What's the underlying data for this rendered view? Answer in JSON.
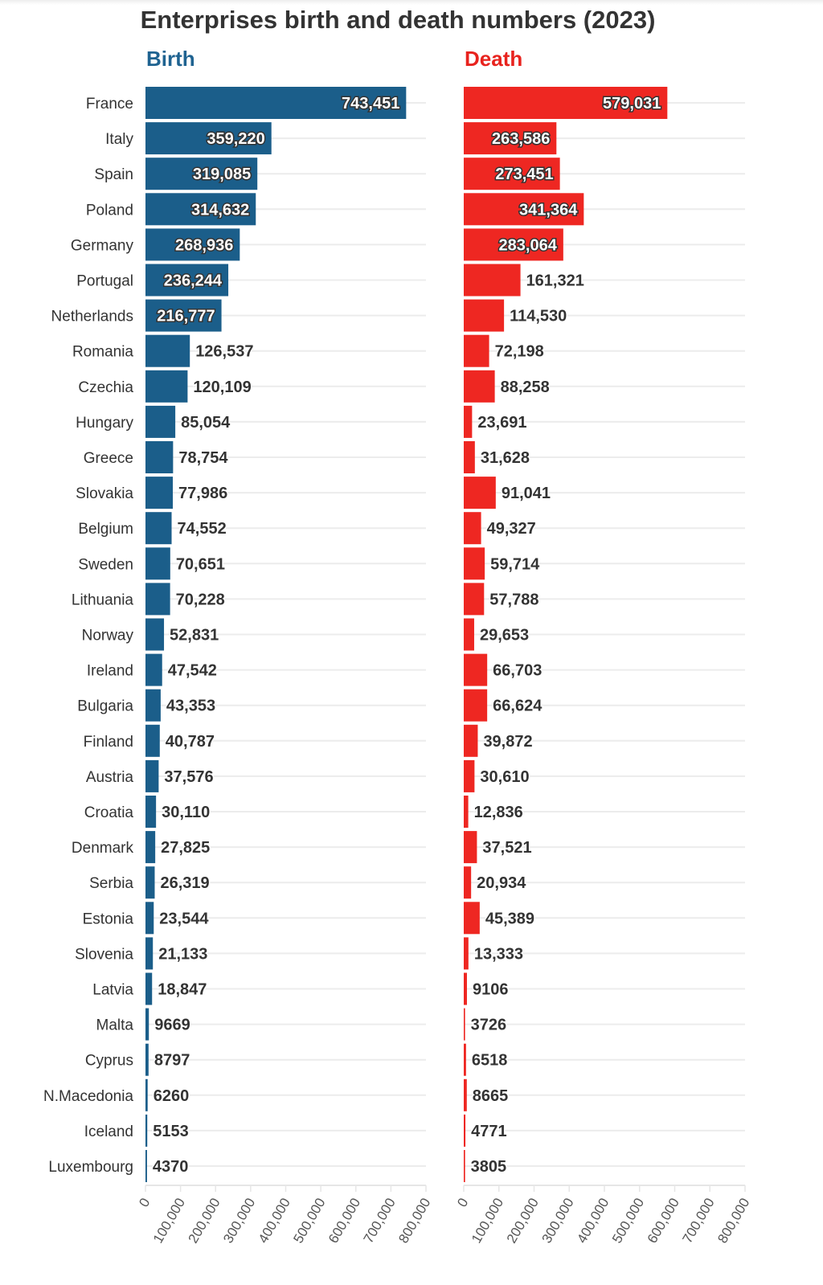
{
  "chart_data": {
    "type": "bar",
    "orientation": "horizontal",
    "title": "Enterprises birth and death numbers (2023)",
    "categories": [
      "France",
      "Italy",
      "Spain",
      "Poland",
      "Germany",
      "Portugal",
      "Netherlands",
      "Romania",
      "Czechia",
      "Hungary",
      "Greece",
      "Slovakia",
      "Belgium",
      "Sweden",
      "Lithuania",
      "Norway",
      "Ireland",
      "Bulgaria",
      "Finland",
      "Austria",
      "Croatia",
      "Denmark",
      "Serbia",
      "Estonia",
      "Slovenia",
      "Latvia",
      "Malta",
      "Cyprus",
      "N.Macedonia",
      "Iceland",
      "Luxembourg"
    ],
    "series": [
      {
        "name": "Birth",
        "color": "#1b5e8a",
        "values": [
          743451,
          359220,
          319085,
          314632,
          268936,
          236244,
          216777,
          126537,
          120109,
          85054,
          78754,
          77986,
          74552,
          70651,
          70228,
          52831,
          47542,
          43353,
          40787,
          37576,
          30110,
          27825,
          26319,
          23544,
          21133,
          18847,
          9669,
          8797,
          6260,
          5153,
          4370
        ],
        "labels": [
          "743,451",
          "359,220",
          "319,085",
          "314,632",
          "268,936",
          "236,244",
          "216,777",
          "126,537",
          "120,109",
          "85,054",
          "78,754",
          "77,986",
          "74,552",
          "70,651",
          "70,228",
          "52,831",
          "47,542",
          "43,353",
          "40,787",
          "37,576",
          "30,110",
          "27,825",
          "26,319",
          "23,544",
          "21,133",
          "18,847",
          "9669",
          "8797",
          "6260",
          "5153",
          "4370"
        ]
      },
      {
        "name": "Death",
        "color": "#ee2722",
        "values": [
          579031,
          263586,
          273451,
          341364,
          283064,
          161321,
          114530,
          72198,
          88258,
          23691,
          31628,
          91041,
          49327,
          59714,
          57788,
          29653,
          66703,
          66624,
          39872,
          30610,
          12836,
          37521,
          20934,
          45389,
          13333,
          9106,
          3726,
          6518,
          8665,
          4771,
          3805
        ],
        "labels": [
          "579,031",
          "263,586",
          "273,451",
          "341,364",
          "283,064",
          "161,321",
          "114,530",
          "72,198",
          "88,258",
          "23,691",
          "31,628",
          "91,041",
          "49,327",
          "59,714",
          "57,788",
          "29,653",
          "66,703",
          "66,624",
          "39,872",
          "30,610",
          "12,836",
          "37,521",
          "20,934",
          "45,389",
          "13,333",
          "9106",
          "3726",
          "6518",
          "8665",
          "4771",
          "3805"
        ]
      }
    ],
    "xlim": [
      0,
      800000
    ],
    "ticks": [
      "0",
      "100,000",
      "200,000",
      "300,000",
      "400,000",
      "500,000",
      "600,000",
      "700,000",
      "800,000"
    ],
    "grid": true,
    "layout": "two side-by-side panels"
  }
}
